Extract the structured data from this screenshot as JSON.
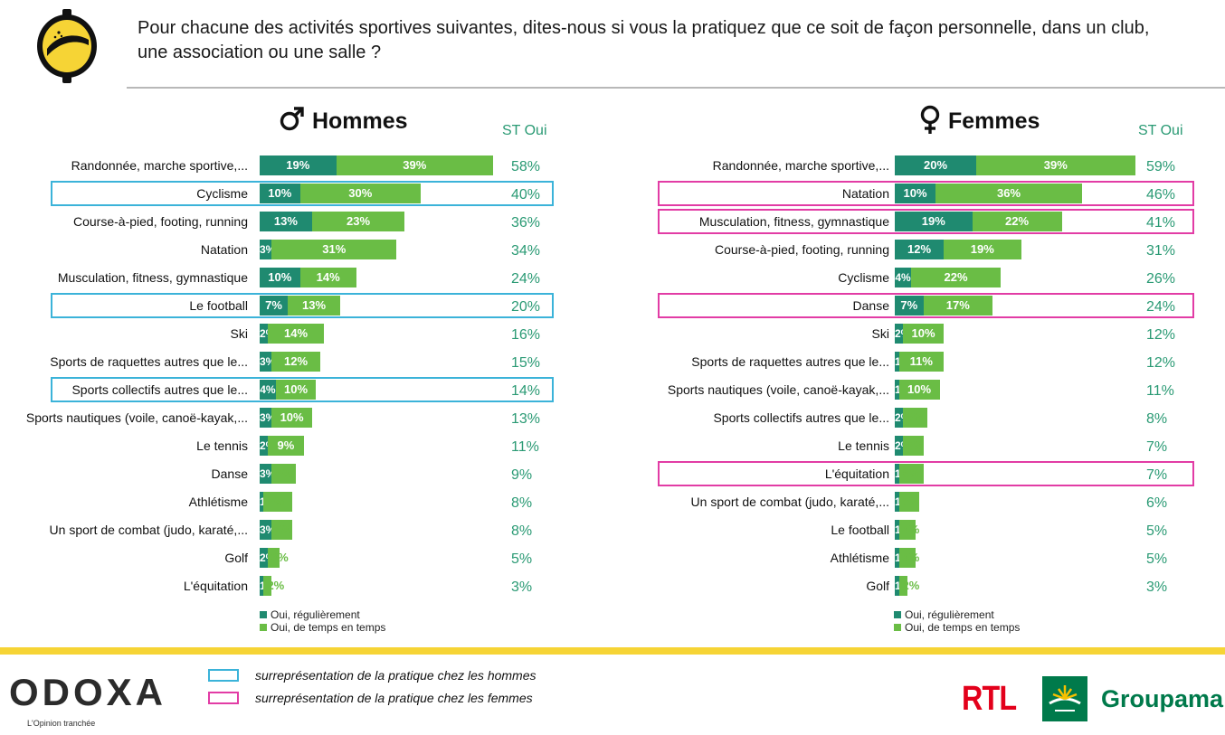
{
  "question": "Pour chacune des activités sportives suivantes, dites-nous si vous la pratiquez que ce soit de façon personnelle, dans un club, une association ou une salle ?",
  "colors": {
    "regulier": "#1f8a70",
    "temps": "#6abd45",
    "st": "#2a9a74",
    "highlight_hommes": "#3bb3d9",
    "highlight_femmes": "#e23ca5",
    "accent_band": "#f6d435"
  },
  "chart_data": [
    {
      "type": "bar",
      "orientation": "horizontal",
      "stacked": true,
      "title": "Hommes",
      "title_icon": "male-symbol-icon",
      "total_label": "ST Oui",
      "legend_position": "bottom",
      "series_names": [
        "Oui, régulièrement",
        "Oui, de temps en temps"
      ],
      "rows": [
        {
          "label": "Randonnée, marche sportive,...",
          "reg": 19,
          "tmp": 39,
          "st": "58%",
          "highlight": false
        },
        {
          "label": "Cyclisme",
          "reg": 10,
          "tmp": 30,
          "st": "40%",
          "highlight": true
        },
        {
          "label": "Course-à-pied, footing, running",
          "reg": 13,
          "tmp": 23,
          "st": "36%",
          "highlight": false
        },
        {
          "label": "Natation",
          "reg": 3,
          "tmp": 31,
          "st": "34%",
          "highlight": false
        },
        {
          "label": "Musculation, fitness, gymnastique",
          "reg": 10,
          "tmp": 14,
          "st": "24%",
          "highlight": false
        },
        {
          "label": "Le football",
          "reg": 7,
          "tmp": 13,
          "st": "20%",
          "highlight": true
        },
        {
          "label": "Ski",
          "reg": 2,
          "tmp": 14,
          "st": "16%",
          "highlight": false
        },
        {
          "label": "Sports de raquettes autres que le...",
          "reg": 3,
          "tmp": 12,
          "st": "15%",
          "highlight": false
        },
        {
          "label": "Sports collectifs autres que le...",
          "reg": 4,
          "tmp": 10,
          "st": "14%",
          "highlight": true
        },
        {
          "label": "Sports nautiques (voile, canoë-kayak,...",
          "reg": 3,
          "tmp": 10,
          "st": "13%",
          "highlight": false
        },
        {
          "label": "Le tennis",
          "reg": 2,
          "tmp": 9,
          "st": "11%",
          "highlight": false
        },
        {
          "label": "Danse",
          "reg": 3,
          "tmp": 6,
          "st": "9%",
          "highlight": false
        },
        {
          "label": "Athlétisme",
          "reg": 1,
          "tmp": 7,
          "st": "8%",
          "highlight": false
        },
        {
          "label": "Un sport de combat (judo, karaté,...",
          "reg": 3,
          "tmp": 5,
          "st": "8%",
          "highlight": false
        },
        {
          "label": "Golf",
          "reg": 2,
          "tmp": 3,
          "st": "5%",
          "highlight": false
        },
        {
          "label": "L'équitation",
          "reg": 1,
          "tmp": 2,
          "st": "3%",
          "highlight": false
        }
      ]
    },
    {
      "type": "bar",
      "orientation": "horizontal",
      "stacked": true,
      "title": "Femmes",
      "title_icon": "female-symbol-icon",
      "total_label": "ST Oui",
      "legend_position": "bottom",
      "series_names": [
        "Oui, régulièrement",
        "Oui, de temps en temps"
      ],
      "rows": [
        {
          "label": "Randonnée, marche sportive,...",
          "reg": 20,
          "tmp": 39,
          "st": "59%",
          "highlight": false
        },
        {
          "label": "Natation",
          "reg": 10,
          "tmp": 36,
          "st": "46%",
          "highlight": true
        },
        {
          "label": "Musculation, fitness, gymnastique",
          "reg": 19,
          "tmp": 22,
          "st": "41%",
          "highlight": true
        },
        {
          "label": "Course-à-pied, footing, running",
          "reg": 12,
          "tmp": 19,
          "st": "31%",
          "highlight": false
        },
        {
          "label": "Cyclisme",
          "reg": 4,
          "tmp": 22,
          "st": "26%",
          "highlight": false
        },
        {
          "label": "Danse",
          "reg": 7,
          "tmp": 17,
          "st": "24%",
          "highlight": true
        },
        {
          "label": "Ski",
          "reg": 2,
          "tmp": 10,
          "st": "12%",
          "highlight": false
        },
        {
          "label": "Sports de raquettes autres que le...",
          "reg": 1,
          "tmp": 11,
          "st": "12%",
          "highlight": false
        },
        {
          "label": "Sports nautiques (voile, canoë-kayak,...",
          "reg": 1,
          "tmp": 10,
          "st": "11%",
          "highlight": false
        },
        {
          "label": "Sports collectifs autres que le...",
          "reg": 2,
          "tmp": 6,
          "st": "8%",
          "highlight": false
        },
        {
          "label": "Le tennis",
          "reg": 2,
          "tmp": 5,
          "st": "7%",
          "highlight": false
        },
        {
          "label": "L'équitation",
          "reg": 1,
          "tmp": 6,
          "st": "7%",
          "highlight": true
        },
        {
          "label": "Un sport de combat (judo, karaté,...",
          "reg": 1,
          "tmp": 5,
          "st": "6%",
          "highlight": false
        },
        {
          "label": "Le football",
          "reg": 1,
          "tmp": 4,
          "st": "5%",
          "highlight": false
        },
        {
          "label": "Athlétisme",
          "reg": 1,
          "tmp": 4,
          "st": "5%",
          "highlight": false
        },
        {
          "label": "Golf",
          "reg": 1,
          "tmp": 2,
          "st": "3%",
          "highlight": false
        }
      ]
    }
  ],
  "notes": {
    "hommes": "surreprésentation de la pratique chez les hommes",
    "femmes": "surreprésentation de la pratique chez les femmes"
  },
  "brand": {
    "odoxa": "ODOXA",
    "odoxa_tagline": "L'Opinion tranchée",
    "rtl": "RTL",
    "groupama": "Groupama"
  }
}
